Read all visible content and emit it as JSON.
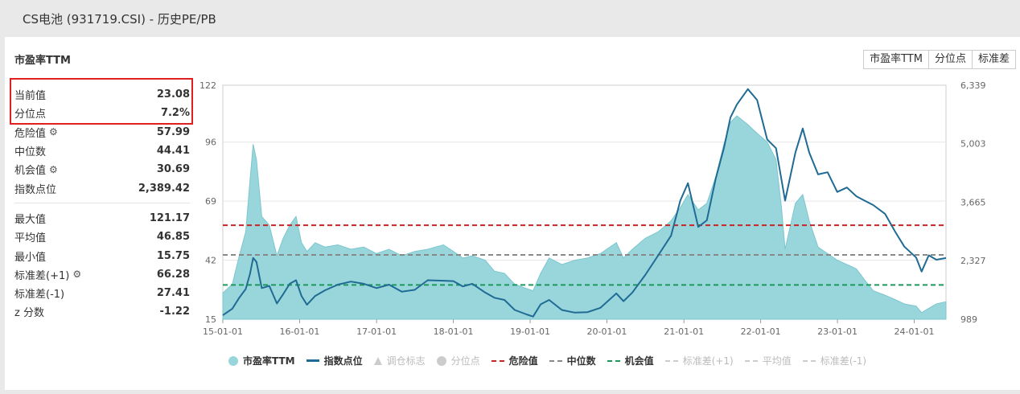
{
  "page": {
    "title": "CS电池 (931719.CSI) - 历史PE/PB"
  },
  "card": {
    "title": "市盈率TTM"
  },
  "tabs": [
    {
      "label": "市盈率TTM"
    },
    {
      "label": "分位点"
    },
    {
      "label": "标准差"
    }
  ],
  "stats_top": [
    {
      "label": "当前值",
      "value": "23.08"
    },
    {
      "label": "分位点",
      "value": "7.2%"
    },
    {
      "label": "危险值",
      "value": "57.99",
      "gear": true
    },
    {
      "label": "中位数",
      "value": "44.41"
    },
    {
      "label": "机会值",
      "value": "30.69",
      "gear": true
    },
    {
      "label": "指数点位",
      "value": "2,389.42"
    }
  ],
  "stats_bottom": [
    {
      "label": "最大值",
      "value": "121.17"
    },
    {
      "label": "平均值",
      "value": "46.85"
    },
    {
      "label": "最小值",
      "value": "15.75"
    },
    {
      "label": "标准差(+1)",
      "value": "66.28",
      "gear": true
    },
    {
      "label": "标准差(-1)",
      "value": "27.41"
    },
    {
      "label": "z 分数",
      "value": "-1.22"
    }
  ],
  "colors": {
    "pe_fill": "#99d6dc",
    "index_line": "#1f6b94",
    "danger": "#cc2222",
    "median": "#888888",
    "opportunity": "#1a9a5a",
    "highlight_box": "#e02020"
  },
  "chart_data": {
    "type": "area",
    "x_ticks": [
      "15-01-01",
      "16-01-01",
      "17-01-01",
      "18-01-01",
      "19-01-01",
      "20-01-01",
      "21-01-01",
      "22-01-01",
      "23-01-01",
      "24-01-01"
    ],
    "x_range": [
      "2015-01-01",
      "2024-05-31"
    ],
    "y_left": {
      "ticks": [
        "15",
        "42",
        "69",
        "96",
        "122"
      ],
      "min": 15,
      "max": 122
    },
    "y_right": {
      "ticks": [
        "989",
        "2,327",
        "3,665",
        "5,003",
        "6,339"
      ],
      "min": 989,
      "max": 6339
    },
    "series": [
      {
        "name": "市盈率TTM",
        "axis": "left",
        "type": "area",
        "points": [
          [
            "2015-01-01",
            27
          ],
          [
            "2015-02-15",
            31
          ],
          [
            "2015-03-20",
            44
          ],
          [
            "2015-04-20",
            55
          ],
          [
            "2015-05-10",
            78
          ],
          [
            "2015-05-25",
            95
          ],
          [
            "2015-06-10",
            88
          ],
          [
            "2015-07-05",
            62
          ],
          [
            "2015-08-10",
            58
          ],
          [
            "2015-09-15",
            44
          ],
          [
            "2015-10-15",
            52
          ],
          [
            "2015-11-15",
            58
          ],
          [
            "2015-12-15",
            62
          ],
          [
            "2016-01-10",
            50
          ],
          [
            "2016-02-05",
            46
          ],
          [
            "2016-03-15",
            50
          ],
          [
            "2016-05-01",
            48
          ],
          [
            "2016-07-01",
            49
          ],
          [
            "2016-09-01",
            47
          ],
          [
            "2016-11-01",
            48
          ],
          [
            "2017-01-01",
            45
          ],
          [
            "2017-03-01",
            47
          ],
          [
            "2017-05-01",
            44
          ],
          [
            "2017-07-01",
            46
          ],
          [
            "2017-09-01",
            47
          ],
          [
            "2017-11-15",
            49
          ],
          [
            "2018-01-01",
            46
          ],
          [
            "2018-02-15",
            43
          ],
          [
            "2018-04-01",
            44
          ],
          [
            "2018-06-01",
            42
          ],
          [
            "2018-07-15",
            37
          ],
          [
            "2018-09-01",
            36
          ],
          [
            "2018-10-20",
            31
          ],
          [
            "2018-12-15",
            29
          ],
          [
            "2019-01-15",
            28
          ],
          [
            "2019-02-20",
            36
          ],
          [
            "2019-04-01",
            43
          ],
          [
            "2019-06-01",
            40
          ],
          [
            "2019-08-01",
            42
          ],
          [
            "2019-10-01",
            43
          ],
          [
            "2019-12-01",
            45
          ],
          [
            "2020-02-15",
            50
          ],
          [
            "2020-03-20",
            43
          ],
          [
            "2020-05-01",
            47
          ],
          [
            "2020-07-01",
            52
          ],
          [
            "2020-09-01",
            55
          ],
          [
            "2020-11-01",
            60
          ],
          [
            "2020-12-15",
            66
          ],
          [
            "2021-01-20",
            72
          ],
          [
            "2021-03-10",
            65
          ],
          [
            "2021-04-20",
            68
          ],
          [
            "2021-06-01",
            80
          ],
          [
            "2021-07-10",
            95
          ],
          [
            "2021-08-10",
            105
          ],
          [
            "2021-09-10",
            108
          ],
          [
            "2021-11-01",
            104
          ],
          [
            "2021-12-15",
            100
          ],
          [
            "2022-02-01",
            96
          ],
          [
            "2022-03-15",
            88
          ],
          [
            "2022-04-10",
            66
          ],
          [
            "2022-04-27",
            47
          ],
          [
            "2022-06-15",
            68
          ],
          [
            "2022-07-20",
            72
          ],
          [
            "2022-08-20",
            60
          ],
          [
            "2022-10-01",
            48
          ],
          [
            "2022-11-15",
            45
          ],
          [
            "2022-12-31",
            42
          ],
          [
            "2023-02-15",
            40
          ],
          [
            "2023-04-01",
            38
          ],
          [
            "2023-05-10",
            33
          ],
          [
            "2023-06-20",
            28
          ],
          [
            "2023-08-15",
            26
          ],
          [
            "2023-10-01",
            24
          ],
          [
            "2023-11-15",
            22
          ],
          [
            "2024-01-10",
            21
          ],
          [
            "2024-02-05",
            18
          ],
          [
            "2024-03-10",
            20
          ],
          [
            "2024-04-15",
            22
          ],
          [
            "2024-05-31",
            23
          ]
        ]
      },
      {
        "name": "指数点位",
        "axis": "right",
        "type": "line",
        "points": [
          [
            "2015-01-01",
            1080
          ],
          [
            "2015-02-15",
            1230
          ],
          [
            "2015-03-20",
            1480
          ],
          [
            "2015-04-20",
            1680
          ],
          [
            "2015-05-10",
            2020
          ],
          [
            "2015-05-25",
            2390
          ],
          [
            "2015-06-10",
            2300
          ],
          [
            "2015-07-05",
            1700
          ],
          [
            "2015-08-10",
            1750
          ],
          [
            "2015-09-15",
            1350
          ],
          [
            "2015-10-15",
            1560
          ],
          [
            "2015-11-15",
            1800
          ],
          [
            "2015-12-15",
            1880
          ],
          [
            "2016-01-10",
            1520
          ],
          [
            "2016-02-05",
            1320
          ],
          [
            "2016-03-15",
            1520
          ],
          [
            "2016-05-01",
            1650
          ],
          [
            "2016-07-01",
            1780
          ],
          [
            "2016-09-01",
            1850
          ],
          [
            "2016-11-01",
            1800
          ],
          [
            "2017-01-01",
            1700
          ],
          [
            "2017-03-01",
            1780
          ],
          [
            "2017-05-01",
            1620
          ],
          [
            "2017-07-01",
            1660
          ],
          [
            "2017-09-01",
            1880
          ],
          [
            "2017-11-15",
            1870
          ],
          [
            "2018-01-01",
            1860
          ],
          [
            "2018-02-15",
            1740
          ],
          [
            "2018-04-01",
            1800
          ],
          [
            "2018-06-01",
            1600
          ],
          [
            "2018-07-15",
            1480
          ],
          [
            "2018-09-01",
            1430
          ],
          [
            "2018-10-20",
            1200
          ],
          [
            "2018-12-15",
            1100
          ],
          [
            "2019-01-15",
            1050
          ],
          [
            "2019-02-20",
            1330
          ],
          [
            "2019-04-01",
            1430
          ],
          [
            "2019-06-01",
            1200
          ],
          [
            "2019-08-01",
            1140
          ],
          [
            "2019-10-01",
            1150
          ],
          [
            "2019-12-01",
            1250
          ],
          [
            "2020-02-15",
            1580
          ],
          [
            "2020-03-20",
            1400
          ],
          [
            "2020-05-01",
            1600
          ],
          [
            "2020-07-01",
            2000
          ],
          [
            "2020-09-01",
            2450
          ],
          [
            "2020-11-01",
            2900
          ],
          [
            "2020-12-15",
            3700
          ],
          [
            "2021-01-20",
            4100
          ],
          [
            "2021-03-10",
            3100
          ],
          [
            "2021-04-20",
            3250
          ],
          [
            "2021-06-01",
            4200
          ],
          [
            "2021-07-10",
            4900
          ],
          [
            "2021-08-10",
            5600
          ],
          [
            "2021-09-10",
            5900
          ],
          [
            "2021-11-01",
            6250
          ],
          [
            "2021-12-15",
            6000
          ],
          [
            "2022-02-01",
            5100
          ],
          [
            "2022-03-15",
            4900
          ],
          [
            "2022-04-27",
            3700
          ],
          [
            "2022-06-15",
            4800
          ],
          [
            "2022-07-20",
            5350
          ],
          [
            "2022-08-20",
            4800
          ],
          [
            "2022-10-01",
            4300
          ],
          [
            "2022-11-15",
            4350
          ],
          [
            "2022-12-31",
            3900
          ],
          [
            "2023-02-15",
            4000
          ],
          [
            "2023-04-01",
            3800
          ],
          [
            "2023-05-10",
            3700
          ],
          [
            "2023-06-20",
            3600
          ],
          [
            "2023-08-15",
            3400
          ],
          [
            "2023-10-01",
            3000
          ],
          [
            "2023-11-15",
            2650
          ],
          [
            "2024-01-10",
            2400
          ],
          [
            "2024-02-05",
            2080
          ],
          [
            "2024-03-10",
            2450
          ],
          [
            "2024-04-15",
            2350
          ],
          [
            "2024-05-31",
            2389
          ]
        ]
      }
    ],
    "reference_lines": [
      {
        "name": "危险值",
        "value": 57.99,
        "style": "dashed",
        "color": "#cc2222"
      },
      {
        "name": "中位数",
        "value": 44.41,
        "style": "dashed",
        "color": "#888888"
      },
      {
        "name": "机会值",
        "value": 30.69,
        "style": "dashed",
        "color": "#1a9a5a"
      }
    ],
    "legend": [
      {
        "label": "市盈率TTM",
        "symbol": "circle",
        "color": "#99d6dc",
        "active": true
      },
      {
        "label": "指数点位",
        "symbol": "line",
        "color": "#1f6b94",
        "active": true
      },
      {
        "label": "调仓标志",
        "symbol": "triangle",
        "color": "#cccccc",
        "active": false
      },
      {
        "label": "分位点",
        "symbol": "circle",
        "color": "#cccccc",
        "active": false
      },
      {
        "label": "危险值",
        "symbol": "dash",
        "color": "#cc2222",
        "active": true
      },
      {
        "label": "中位数",
        "symbol": "dash",
        "color": "#888888",
        "active": true
      },
      {
        "label": "机会值",
        "symbol": "dash",
        "color": "#1a9a5a",
        "active": true
      },
      {
        "label": "标准差(+1)",
        "symbol": "dash",
        "color": "#cccccc",
        "active": false
      },
      {
        "label": "平均值",
        "symbol": "dash",
        "color": "#cccccc",
        "active": false
      },
      {
        "label": "标准差(-1)",
        "symbol": "dash",
        "color": "#cccccc",
        "active": false
      }
    ]
  }
}
